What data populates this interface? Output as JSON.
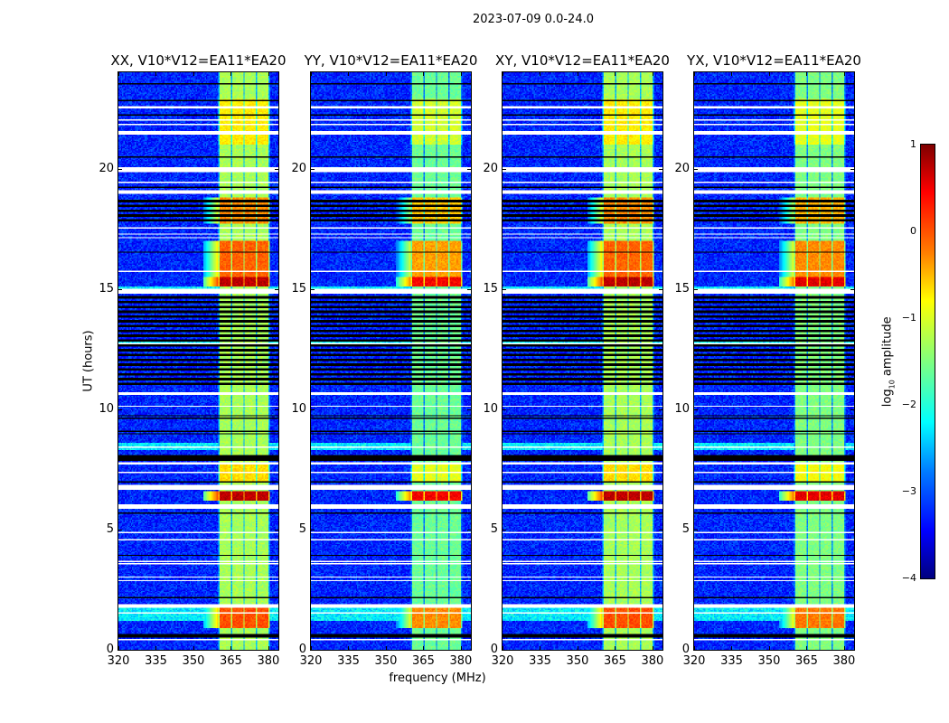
{
  "chart_data": {
    "type": "heatmap",
    "title": "2023-07-09 0.0-24.0",
    "xlabel": "frequency (MHz)",
    "ylabel": "UT (hours)",
    "xlim": [
      320,
      384
    ],
    "ylim": [
      0,
      24
    ],
    "xticks": [
      320,
      335,
      350,
      365,
      380
    ],
    "yticks": [
      0,
      5,
      10,
      15,
      20
    ],
    "panels": [
      {
        "title": "XX, V10*V12=EA11*EA20",
        "offset": 0.0
      },
      {
        "title": "YY, V10*V12=EA11*EA20",
        "offset": -0.3
      },
      {
        "title": "XY, V10*V12=EA11*EA20",
        "offset": 0.0
      },
      {
        "title": "YX, V10*V12=EA11*EA20",
        "offset": -0.2
      }
    ],
    "colorbar": {
      "label_main": "log",
      "label_sub": "10",
      "label_rest": " amplitude",
      "vmin": -4,
      "vmax": 1,
      "ticks": [
        1,
        0,
        -1,
        -2,
        -3,
        -4
      ],
      "tick_labels": [
        "1",
        "0",
        "−1",
        "−2",
        "−3",
        "−4"
      ],
      "colormap": "jet"
    },
    "band_segments_mhz": [
      [
        360.5,
        365
      ],
      [
        365.5,
        370
      ],
      [
        370.5,
        375
      ],
      [
        375.5,
        380
      ]
    ],
    "background_log_amplitude": -3.2,
    "band_log_amplitude": -1.3,
    "bright_events_hours": [
      {
        "range": [
          0.9,
          1.9
        ],
        "level": 0.0
      },
      {
        "range": [
          6.2,
          6.6
        ],
        "level": 0.7
      },
      {
        "range": [
          7.0,
          7.7
        ],
        "level": -0.7
      },
      {
        "range": [
          15.1,
          15.5
        ],
        "level": 0.7
      },
      {
        "range": [
          15.5,
          17.0
        ],
        "level": -0.1
      },
      {
        "range": [
          17.7,
          18.8
        ],
        "level": -0.3
      },
      {
        "range": [
          21.0,
          22.9
        ],
        "level": -0.8
      }
    ],
    "background_boost_hours": [
      [
        1.2,
        1.9
      ],
      [
        14.8,
        15.1
      ],
      [
        8.3,
        8.6
      ],
      [
        12.6,
        12.8
      ]
    ],
    "striped_hours": [
      [
        11.0,
        14.7
      ],
      [
        17.7,
        18.8
      ]
    ],
    "flagged_white_hours": [
      [
        0.42,
        0.47
      ],
      [
        1.48,
        1.53
      ],
      [
        1.75,
        1.9
      ],
      [
        2.83,
        2.88
      ],
      [
        2.98,
        3.03
      ],
      [
        3.53,
        3.58
      ],
      [
        3.63,
        3.68
      ],
      [
        4.53,
        4.58
      ],
      [
        4.83,
        4.88
      ],
      [
        5.85,
        6.05
      ],
      [
        6.65,
        6.85
      ],
      [
        7.33,
        7.38
      ],
      [
        7.7,
        7.8
      ],
      [
        8.38,
        8.43
      ],
      [
        10.08,
        10.13
      ],
      [
        10.6,
        10.7
      ],
      [
        12.7,
        12.76
      ],
      [
        14.8,
        15.0
      ],
      [
        15.68,
        15.73
      ],
      [
        17.08,
        17.13
      ],
      [
        17.23,
        17.28
      ],
      [
        17.48,
        17.53
      ],
      [
        18.95,
        19.1
      ],
      [
        19.38,
        19.43
      ],
      [
        19.85,
        20.05
      ],
      [
        21.4,
        21.55
      ],
      [
        21.78,
        21.83
      ],
      [
        21.98,
        22.03
      ],
      [
        22.5,
        22.62
      ]
    ],
    "flagged_black_hours": [
      [
        0.08,
        0.12
      ],
      [
        0.5,
        0.65
      ],
      [
        2.13,
        2.18
      ],
      [
        3.88,
        3.93
      ],
      [
        5.63,
        5.68
      ],
      [
        6.18,
        6.22
      ],
      [
        6.93,
        6.98
      ],
      [
        7.85,
        8.1
      ],
      [
        8.93,
        8.98
      ],
      [
        9.03,
        9.08
      ],
      [
        9.58,
        9.63
      ],
      [
        9.68,
        9.73
      ],
      [
        16.48,
        16.53
      ],
      [
        19.18,
        19.23
      ],
      [
        20.43,
        20.48
      ],
      [
        22.18,
        22.23
      ],
      [
        22.78,
        22.83
      ],
      [
        23.48,
        23.53
      ]
    ]
  }
}
